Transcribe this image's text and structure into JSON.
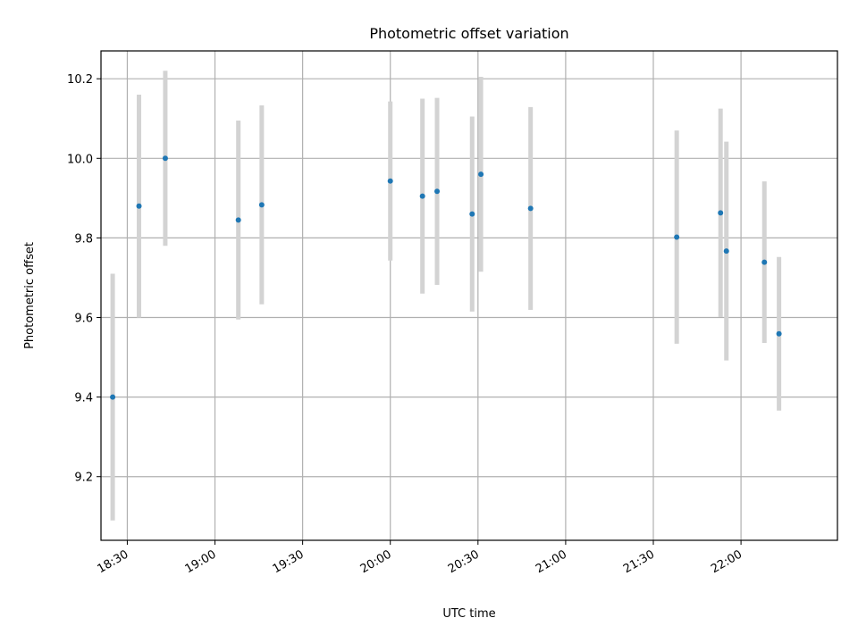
{
  "chart_data": {
    "type": "scatter",
    "title": "Photometric offset variation",
    "xlabel": "UTC time",
    "ylabel": "Photometric offset",
    "xlim": [
      "18:21",
      "22:33"
    ],
    "ylim": [
      9.04,
      10.27
    ],
    "x_ticks": [
      "18:30",
      "19:00",
      "19:30",
      "20:00",
      "20:30",
      "21:00",
      "21:30",
      "22:00"
    ],
    "y_ticks": [
      9.2,
      9.4,
      9.6,
      9.8,
      10.0,
      10.2
    ],
    "y_tick_labels": [
      "9.2",
      "9.4",
      "9.6",
      "9.8",
      "10.0",
      "10.2"
    ],
    "grid": true,
    "colors": {
      "point": "#1f77b4",
      "errorbar": "#d3d3d3",
      "grid": "#b0b0b0"
    },
    "points": [
      {
        "x": "18:25",
        "y": 9.4,
        "err": 0.31
      },
      {
        "x": "18:34",
        "y": 9.88,
        "err": 0.28
      },
      {
        "x": "18:43",
        "y": 10.0,
        "err": 0.22
      },
      {
        "x": "19:08",
        "y": 9.845,
        "err": 0.25
      },
      {
        "x": "19:16",
        "y": 9.883,
        "err": 0.25
      },
      {
        "x": "20:00",
        "y": 9.943,
        "err": 0.2
      },
      {
        "x": "20:11",
        "y": 9.905,
        "err": 0.245
      },
      {
        "x": "20:16",
        "y": 9.917,
        "err": 0.235
      },
      {
        "x": "20:28",
        "y": 9.86,
        "err": 0.245
      },
      {
        "x": "20:31",
        "y": 9.96,
        "err": 0.245
      },
      {
        "x": "20:48",
        "y": 9.874,
        "err": 0.255
      },
      {
        "x": "21:38",
        "y": 9.802,
        "err": 0.268
      },
      {
        "x": "21:53",
        "y": 9.863,
        "err": 0.262
      },
      {
        "x": "21:55",
        "y": 9.767,
        "err": 0.275
      },
      {
        "x": "22:08",
        "y": 9.739,
        "err": 0.203
      },
      {
        "x": "22:13",
        "y": 9.559,
        "err": 0.193
      }
    ]
  }
}
